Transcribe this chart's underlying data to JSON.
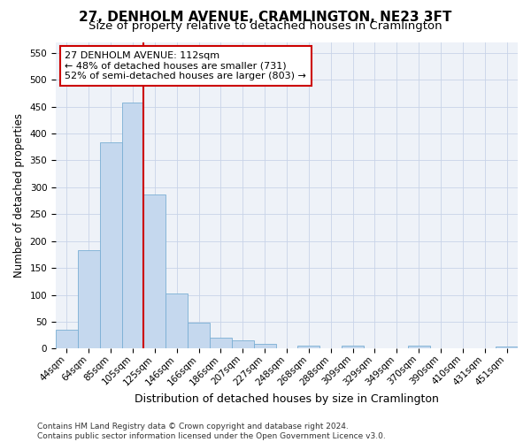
{
  "title": "27, DENHOLM AVENUE, CRAMLINGTON, NE23 3FT",
  "subtitle": "Size of property relative to detached houses in Cramlington",
  "xlabel": "Distribution of detached houses by size in Cramlington",
  "ylabel": "Number of detached properties",
  "footer_line1": "Contains HM Land Registry data © Crown copyright and database right 2024.",
  "footer_line2": "Contains public sector information licensed under the Open Government Licence v3.0.",
  "categories": [
    "44sqm",
    "64sqm",
    "85sqm",
    "105sqm",
    "125sqm",
    "146sqm",
    "166sqm",
    "186sqm",
    "207sqm",
    "227sqm",
    "248sqm",
    "268sqm",
    "288sqm",
    "309sqm",
    "329sqm",
    "349sqm",
    "370sqm",
    "390sqm",
    "410sqm",
    "431sqm",
    "451sqm"
  ],
  "values": [
    35,
    183,
    384,
    457,
    287,
    103,
    48,
    20,
    15,
    9,
    0,
    5,
    0,
    5,
    0,
    0,
    5,
    0,
    0,
    0,
    4
  ],
  "bar_color": "#c5d8ee",
  "bar_edge_color": "#7aafd4",
  "annotation_line1": "27 DENHOLM AVENUE: 112sqm",
  "annotation_line2": "← 48% of detached houses are smaller (731)",
  "annotation_line3": "52% of semi-detached houses are larger (803) →",
  "annotation_box_color": "#ffffff",
  "annotation_box_edge": "#cc0000",
  "red_line_color": "#cc0000",
  "red_line_index": 3.5,
  "ylim": [
    0,
    570
  ],
  "yticks": [
    0,
    50,
    100,
    150,
    200,
    250,
    300,
    350,
    400,
    450,
    500,
    550
  ],
  "title_fontsize": 11,
  "subtitle_fontsize": 9.5,
  "xlabel_fontsize": 9,
  "ylabel_fontsize": 8.5,
  "tick_fontsize": 7.5,
  "annotation_fontsize": 8,
  "footer_fontsize": 6.5,
  "grid_color": "#c8d4e8",
  "bg_color": "#eef2f8"
}
